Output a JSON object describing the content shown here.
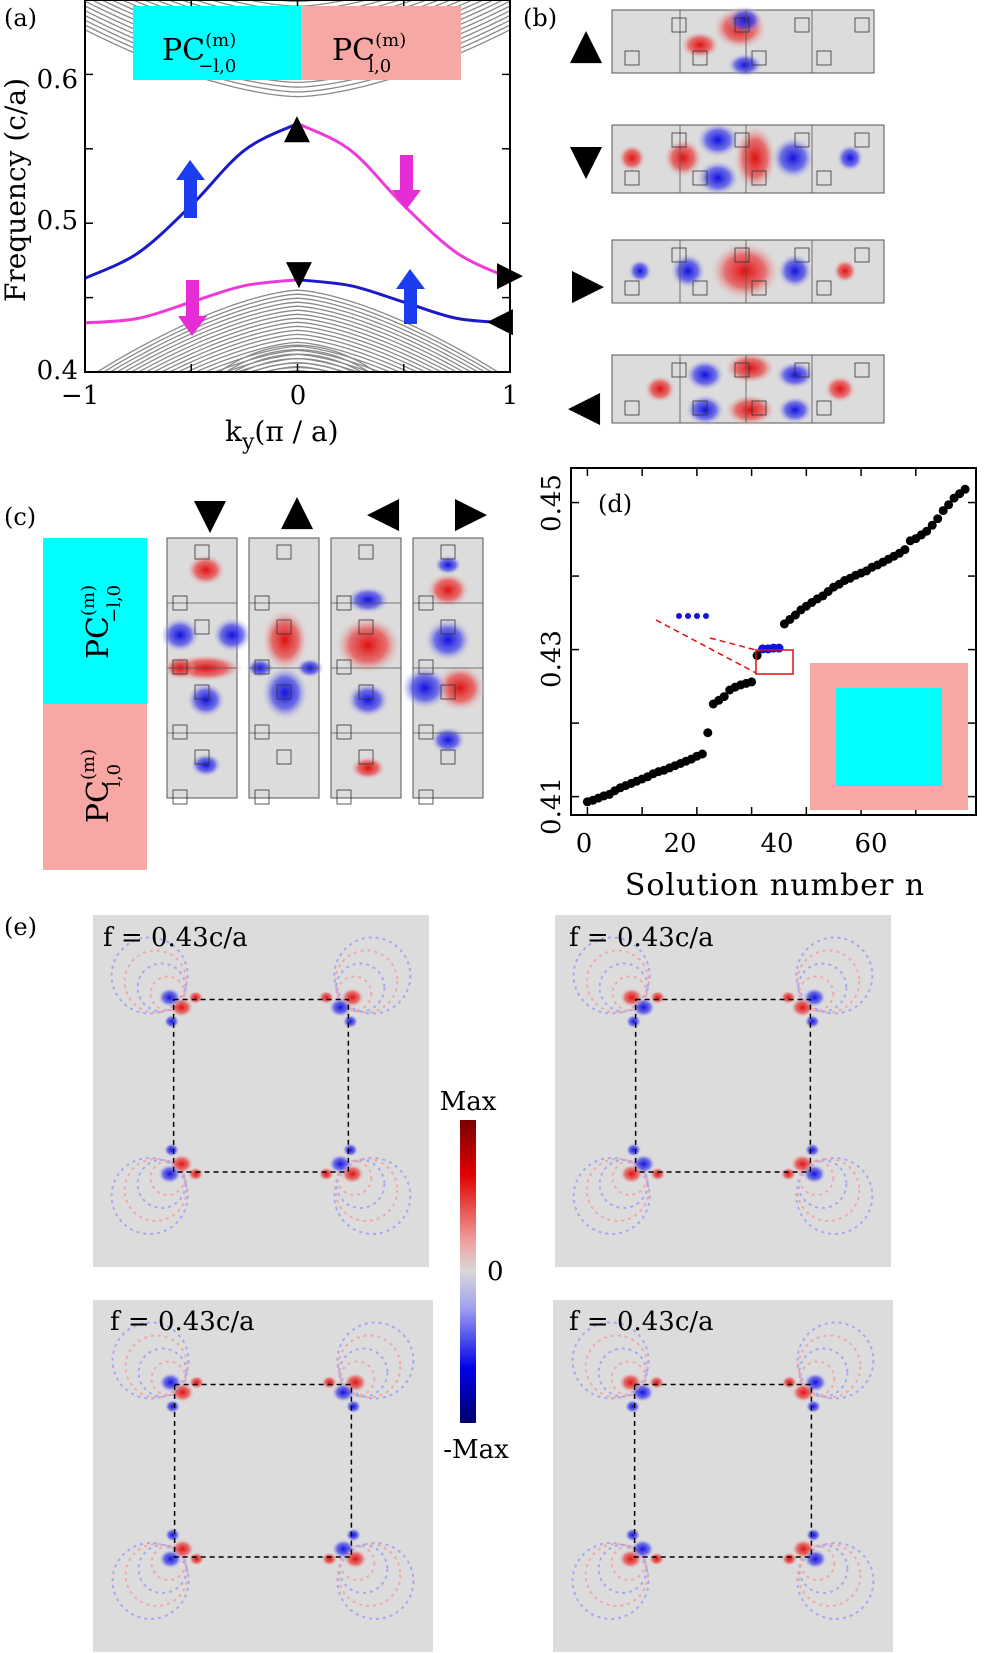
{
  "panel_labels": {
    "a": "(a)",
    "b": "(b)",
    "c": "(c)",
    "d": "(d)",
    "e": "(e)"
  },
  "crystal_labels": {
    "left": "PC",
    "left_sup": "(m)",
    "left_sub": "−l,0",
    "right": "PC",
    "right_sup": "(m)",
    "right_sub": "l,0"
  },
  "colors": {
    "cyan": "#00ffff",
    "pink": "#f8a8a4",
    "blue_curve": "#1a1ac8",
    "magenta_curve": "#ee3ad8",
    "arrow_blue": "#1c3cf0",
    "arrow_magenta": "#e62cd4",
    "band_gray": "#8a8a8a"
  },
  "chart_a": {
    "xlabel": "k",
    "xlabel_sub": "y",
    "xlabel_tail": "(π / a)",
    "ylabel": "Frequency (c/a)",
    "xticks": [
      "−1",
      "0",
      "1"
    ],
    "yticks": [
      "0.4",
      "0.5",
      "0.6"
    ],
    "xlim": [
      -1,
      1
    ],
    "ylim": [
      0.4,
      0.65
    ]
  },
  "chart_d": {
    "xlabel": "Solution number n",
    "xticks": [
      "0",
      "20",
      "40",
      "60"
    ],
    "yticks": [
      "0.41",
      "0.43",
      "0.45"
    ],
    "xlim": [
      -3,
      71
    ],
    "ylim": [
      0.4075,
      0.4547
    ]
  },
  "chart_data": [
    {
      "type": "line",
      "title": "",
      "xlabel": "ky(π/a)",
      "ylabel": "Frequency (c/a)",
      "xlim": [
        -1,
        1
      ],
      "ylim": [
        0.4,
        0.65
      ],
      "x": [
        -1,
        -0.75,
        -0.5,
        -0.25,
        0,
        0.25,
        0.5,
        0.75,
        1
      ],
      "series": [
        {
          "color": "blue",
          "x": [
            -1,
            -0.75,
            -0.5,
            -0.25,
            0
          ],
          "values": [
            0.463,
            0.48,
            0.512,
            0.549,
            0.567
          ]
        },
        {
          "color": "magenta",
          "x": [
            0,
            0.25,
            0.5,
            0.75,
            1
          ],
          "values": [
            0.567,
            0.549,
            0.512,
            0.48,
            0.463
          ]
        },
        {
          "color": "magenta",
          "x": [
            -1,
            -0.75,
            -0.5,
            -0.25,
            0
          ],
          "values": [
            0.433,
            0.436,
            0.447,
            0.458,
            0.462
          ]
        },
        {
          "color": "blue",
          "x": [
            0,
            0.25,
            0.5,
            0.75,
            1
          ],
          "values": [
            0.462,
            0.458,
            0.447,
            0.436,
            0.433
          ]
        }
      ],
      "markers": [
        {
          "symbol": "▲",
          "x": 0,
          "y": 0.567
        },
        {
          "symbol": "▼",
          "x": 0,
          "y": 0.462
        },
        {
          "symbol": "▶",
          "x": 1,
          "y": 0.463
        },
        {
          "symbol": "◀",
          "x": 1,
          "y": 0.433
        }
      ]
    },
    {
      "type": "scatter",
      "title": "",
      "xlabel": "Solution number n",
      "ylabel": "",
      "xlim": [
        -3,
        71
      ],
      "ylim": [
        0.4075,
        0.4547
      ],
      "series": [
        {
          "color": "black",
          "x": [
            0,
            1,
            2,
            3,
            4,
            5,
            6,
            7,
            8,
            9,
            10,
            11,
            12,
            13,
            14,
            15,
            16,
            17,
            18,
            19,
            20,
            21,
            22,
            23,
            24,
            25,
            26,
            27,
            28,
            29,
            30,
            31,
            36,
            37,
            38,
            39,
            40,
            41,
            42,
            43,
            44,
            45,
            46,
            47,
            48,
            49,
            50,
            51,
            52,
            53,
            54,
            55,
            56,
            57,
            58,
            59,
            60,
            61,
            62,
            63,
            64,
            65,
            66,
            67,
            68,
            69
          ],
          "values": [
            0.4093,
            0.4095,
            0.4098,
            0.4101,
            0.4103,
            0.4108,
            0.4112,
            0.4115,
            0.4118,
            0.4121,
            0.4124,
            0.4127,
            0.4131,
            0.4134,
            0.4136,
            0.4139,
            0.4142,
            0.4145,
            0.4148,
            0.4151,
            0.4155,
            0.4158,
            0.4187,
            0.4226,
            0.4231,
            0.4236,
            0.4245,
            0.4249,
            0.4252,
            0.4254,
            0.4256,
            0.4292,
            0.4335,
            0.4341,
            0.4347,
            0.4354,
            0.4359,
            0.4364,
            0.4369,
            0.4373,
            0.4379,
            0.4385,
            0.4389,
            0.4394,
            0.4397,
            0.4401,
            0.4404,
            0.4407,
            0.4412,
            0.4415,
            0.4419,
            0.4423,
            0.4427,
            0.4431,
            0.4436,
            0.4448,
            0.4451,
            0.4456,
            0.4461,
            0.4469,
            0.4478,
            0.4489,
            0.4497,
            0.4506,
            0.4512,
            0.4518
          ]
        },
        {
          "color": "blue",
          "x": [
            32,
            33,
            34,
            35
          ],
          "values": [
            0.4301,
            0.4301,
            0.4302,
            0.4302
          ]
        }
      ]
    }
  ],
  "panel_b_markers": [
    "▲",
    "▼",
    "▶",
    "◀"
  ],
  "panel_c_markers": [
    "▼",
    "▲",
    "◀",
    "▶"
  ],
  "colorbar": {
    "max": "Max",
    "zero": "0",
    "min": "-Max"
  },
  "field_labels": [
    "f = 0.43c/a",
    "f = 0.43c/a",
    "f = 0.43c/a",
    "f = 0.43c/a"
  ]
}
